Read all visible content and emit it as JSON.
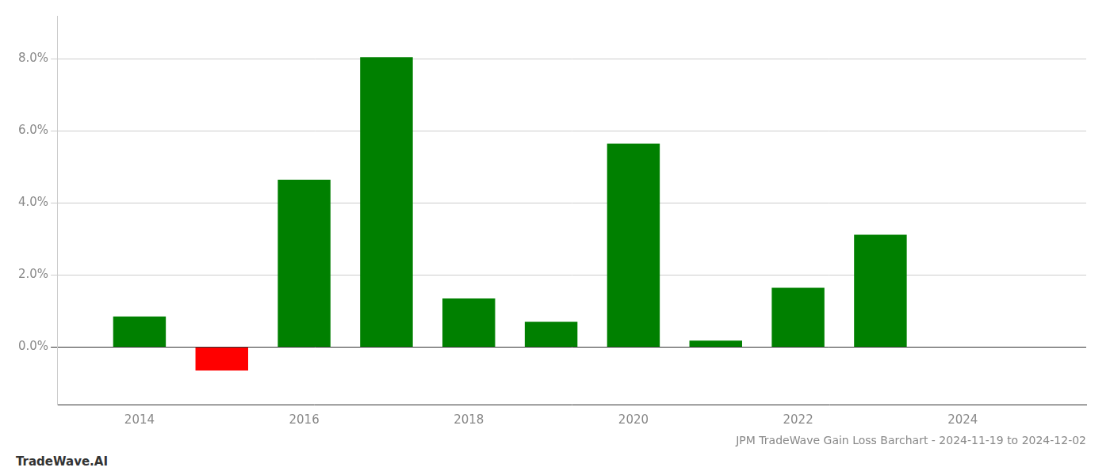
{
  "chart_data": {
    "type": "bar",
    "title": "JPM TradeWave Gain Loss Barchart - 2024-11-19 to 2024-12-02",
    "annotations": [
      "TradeWave.AI"
    ],
    "x": [
      2014,
      2015,
      2016,
      2017,
      2018,
      2019,
      2020,
      2021,
      2022,
      2023
    ],
    "values": [
      0.0085,
      -0.0065,
      0.0465,
      0.0805,
      0.0135,
      0.007,
      0.0565,
      0.0018,
      0.0165,
      0.0312
    ],
    "colors": [
      "#008000",
      "#ff0000",
      "#008000",
      "#008000",
      "#008000",
      "#008000",
      "#008000",
      "#008000",
      "#008000",
      "#008000"
    ],
    "xlim": [
      2013.0,
      2025.5
    ],
    "xticks": [
      2014,
      2016,
      2018,
      2020,
      2022,
      2024
    ],
    "ylim": [
      -0.016,
      0.092
    ],
    "yticks": [
      {
        "value": 0.0,
        "label": "0.0%"
      },
      {
        "value": 0.02,
        "label": "2.0%"
      },
      {
        "value": 0.04,
        "label": "4.0%"
      },
      {
        "value": 0.06,
        "label": "6.0%"
      },
      {
        "value": 0.08,
        "label": "8.0%"
      }
    ],
    "grid": true
  }
}
